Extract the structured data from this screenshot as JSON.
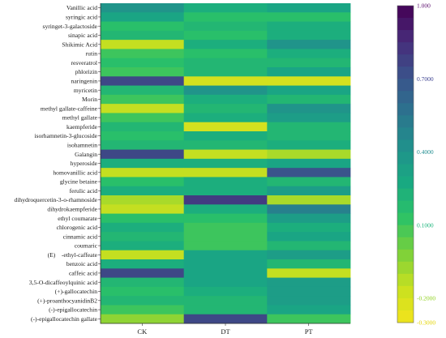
{
  "chart_data": {
    "type": "heatmap",
    "columns": [
      "CK",
      "DT",
      "PT"
    ],
    "rows": [
      "Vanillic acid",
      "syringic acid",
      "syringet-3-galactoside",
      "sinapic acid",
      "Shikimic Acid",
      "rutin",
      "resveratrol",
      "phlorizin",
      "naringenin",
      "myricetin",
      "Morin",
      "methyl gallate-caffeine",
      "methyl gallate",
      "kaempferide",
      "isorhamnetin-3-glucoside",
      "isohamnetin",
      "Galangin",
      "hyperoside",
      "homovanillic acid",
      "glycine betaine",
      "ferulic acid",
      "dihydroquercetin-3-o-rhamnoside",
      "dihydrokaempferide",
      "ethyl coumarate",
      "chlorogenic acid",
      "cinnamic acid",
      "coumaric",
      "(E)　-ethyl-caffeate",
      "benzoic acid",
      "caffeic acid",
      "3,5-O-dicaffeoylquinic acid",
      "(+)-gallocatechin",
      "(+)-proanthocyanidinB2",
      "(-)-epigallocatechin",
      "(-)-epigallocatechin gallate"
    ],
    "values": [
      [
        0.4,
        0.25,
        0.3
      ],
      [
        0.3,
        0.15,
        0.15
      ],
      [
        0.15,
        0.2,
        0.25
      ],
      [
        0.2,
        0.15,
        0.25
      ],
      [
        -0.15,
        0.25,
        0.4
      ],
      [
        0.1,
        0.15,
        0.25
      ],
      [
        0.15,
        0.2,
        0.2
      ],
      [
        0.1,
        0.2,
        0.3
      ],
      [
        0.75,
        -0.2,
        -0.2
      ],
      [
        0.2,
        0.4,
        0.3
      ],
      [
        0.1,
        0.25,
        0.2
      ],
      [
        -0.15,
        0.2,
        0.4
      ],
      [
        0.1,
        0.25,
        0.35
      ],
      [
        0.2,
        -0.2,
        0.2
      ],
      [
        0.15,
        0.25,
        0.2
      ],
      [
        0.2,
        0.2,
        0.25
      ],
      [
        0.75,
        -0.15,
        -0.1
      ],
      [
        0.25,
        0.25,
        0.3
      ],
      [
        -0.15,
        -0.15,
        0.7
      ],
      [
        0.15,
        0.25,
        0.2
      ],
      [
        0.25,
        0.25,
        0.35
      ],
      [
        -0.1,
        0.8,
        -0.1
      ],
      [
        -0.15,
        0.25,
        0.5
      ],
      [
        0.15,
        0.15,
        0.35
      ],
      [
        0.25,
        0.1,
        0.25
      ],
      [
        0.2,
        0.1,
        0.3
      ],
      [
        0.25,
        0.1,
        0.2
      ],
      [
        -0.15,
        0.3,
        0.35
      ],
      [
        0.25,
        0.3,
        0.2
      ],
      [
        0.75,
        0.3,
        -0.15
      ],
      [
        0.2,
        0.3,
        0.35
      ],
      [
        0.15,
        0.25,
        0.35
      ],
      [
        0.2,
        0.2,
        0.35
      ],
      [
        0.1,
        0.2,
        0.3
      ],
      [
        -0.05,
        0.75,
        0.1
      ]
    ],
    "colorbar": {
      "min": -0.3,
      "max": 1.0,
      "tick_labels": [
        "1.000",
        "0.7000",
        "0.4000",
        "0.1000",
        "-0.2000",
        "-0.3000"
      ],
      "tick_values": [
        1.0,
        0.7,
        0.4,
        0.1,
        -0.2,
        -0.3
      ],
      "tick_colors": [
        "#5b0d6e",
        "#3a3f8f",
        "#1f8c8f",
        "#19b47a",
        "#8fd21e",
        "#e3d400"
      ],
      "colormap": [
        "#f2e41c",
        "#c7e020",
        "#7ad03b",
        "#2bc267",
        "#19a982",
        "#21908c",
        "#2c728e",
        "#3b528b",
        "#472c7a",
        "#440154"
      ]
    },
    "title": "",
    "xlabel": "",
    "ylabel": "",
    "grid": false,
    "legend": "colorbar-right"
  }
}
